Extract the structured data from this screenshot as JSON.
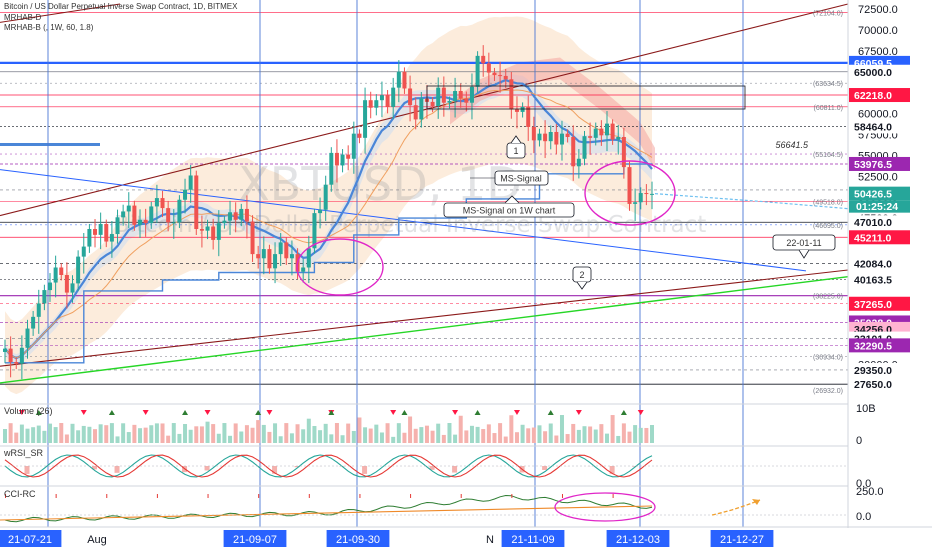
{
  "header": {
    "title": "Bitcoin / US Dollar Perpetual Inverse Swap Contract, 1D, BITMEX",
    "line2": "MRHAB-D",
    "line3": "MRHAB-B (, 1W, 60, 1.8)"
  },
  "watermark": {
    "symbol": "XBTUSD, 1D",
    "subtitle": "Bitcoin / US Dollar Perpetual Inverse Swap Contract"
  },
  "annotations": {
    "ms_signal": "MS-Signal",
    "ms_signal_1w": "MS-Signal on 1W chart",
    "marker1": "1",
    "marker2": "2",
    "date_callout": "22-01-11",
    "level_56641": "56641.5"
  },
  "panes": {
    "volume": "Volume (26)",
    "volume_scale": "10B",
    "volume_zero": "0",
    "wrsi": "wRSI_SR",
    "wrsi_scale": "0.0",
    "cci": "CCI-RC",
    "cci_top": "250.0",
    "cci_zero": "0.0"
  },
  "countdown": "01:25:24",
  "colors": {
    "price_up": "#26a69a",
    "price_down": "#ef5350",
    "trend_brown": "#8b1a1a",
    "trend_green": "#26d626",
    "ma_blue": "#4a86d8",
    "magenta": "#e026c8",
    "vline": "#4a76d4"
  },
  "chart_data": {
    "type": "candlestick",
    "title": "Bitcoin / US Dollar Perpetual Inverse Swap Contract, 1D, BITMEX",
    "price_range": [
      25400,
      73100
    ],
    "y_ticks": [
      {
        "label": "72500.0"
      },
      {
        "label": "70000.0"
      },
      {
        "label": "67500.0"
      },
      {
        "label": "65000.0"
      },
      {
        "label": "62500.0"
      },
      {
        "label": "60000.0"
      },
      {
        "label": "57500.0"
      },
      {
        "label": "55000.0"
      },
      {
        "label": "52500.0"
      },
      {
        "label": "50000.0"
      },
      {
        "label": "47500.0"
      },
      {
        "label": "45000.0"
      },
      {
        "label": "42500.0"
      },
      {
        "label": "40000.0"
      },
      {
        "label": "37500.0"
      },
      {
        "label": "35000.0"
      },
      {
        "label": "32500.0"
      },
      {
        "label": "30000.0"
      },
      {
        "label": "27500.0"
      }
    ],
    "price_badges": [
      {
        "label": "66059.5",
        "value": 66059.5,
        "bg": "#2962ff",
        "fg": "#ffffff"
      },
      {
        "label": "65000.0",
        "value": 65000,
        "bg": "#ffffff",
        "fg": "#131722"
      },
      {
        "label": "62218.0",
        "value": 62218,
        "bg": "#ff1744",
        "fg": "#ffffff"
      },
      {
        "label": "58464.0",
        "value": 58464,
        "bg": "#ffffff",
        "fg": "#131722"
      },
      {
        "label": "53976.5",
        "value": 53976.5,
        "bg": "#9c27b0",
        "fg": "#ffffff"
      },
      {
        "label": "50876.0",
        "value": 50876,
        "bg": "#ffffff",
        "fg": "#131722"
      },
      {
        "label": "50426.5",
        "value": 50426.5,
        "bg": "#26a69a",
        "fg": "#ffffff"
      },
      {
        "label": "47010.0",
        "value": 47010,
        "bg": "#ffffff",
        "fg": "#131722"
      },
      {
        "label": "45211.0",
        "value": 45211,
        "bg": "#ff1744",
        "fg": "#ffffff"
      },
      {
        "label": "42084.0",
        "value": 42084,
        "bg": "#ffffff",
        "fg": "#131722"
      },
      {
        "label": "40163.5",
        "value": 40163.5,
        "bg": "#ffffff",
        "fg": "#131722"
      },
      {
        "label": "37265.0",
        "value": 37265,
        "bg": "#ff1744",
        "fg": "#ffffff"
      },
      {
        "label": "35028.0",
        "value": 35028,
        "bg": "#9c27b0",
        "fg": "#ffffff"
      },
      {
        "label": "34256.0",
        "value": 34256,
        "bg": "#ffb3d1",
        "fg": "#131722"
      },
      {
        "label": "33101.0",
        "value": 33101,
        "bg": "#ffffff",
        "fg": "#131722"
      },
      {
        "label": "32290.5",
        "value": 32290.5,
        "bg": "#9c27b0",
        "fg": "#ffffff"
      },
      {
        "label": "29350.0",
        "value": 29350,
        "bg": "#ffffff",
        "fg": "#131722"
      },
      {
        "label": "27650.0",
        "value": 27650,
        "bg": "#ffffff",
        "fg": "#131722"
      }
    ],
    "small_level_labels": [
      {
        "label": "(72104.0)",
        "value": 72104
      },
      {
        "label": "(63634.5)",
        "value": 63634.5
      },
      {
        "label": "(60811.0)",
        "value": 60811
      },
      {
        "label": "(55164.5)",
        "value": 55164.5
      },
      {
        "label": "(49518.0)",
        "value": 49518
      },
      {
        "label": "(46695.0)",
        "value": 46695
      },
      {
        "label": "(38225.0)",
        "value": 38225
      },
      {
        "label": "(30934.0)",
        "value": 30934
      },
      {
        "label": "(26932.0)",
        "value": 26932
      }
    ],
    "x_labels": [
      {
        "label": "21-07-21",
        "highlight": true
      },
      {
        "label": "Aug",
        "highlight": false
      },
      {
        "label": "21-09-07",
        "highlight": true
      },
      {
        "label": "21-09-30",
        "highlight": true
      },
      {
        "label": "N",
        "highlight": false
      },
      {
        "label": "21-11-09",
        "highlight": true
      },
      {
        "label": "21-12-03",
        "highlight": true
      },
      {
        "label": "21-12-27",
        "highlight": true
      }
    ],
    "closes": [
      31900,
      30300,
      30100,
      32000,
      34300,
      35700,
      37300,
      38900,
      39800,
      41600,
      40700,
      38600,
      39700,
      42900,
      44100,
      46200,
      45500,
      46800,
      44700,
      45600,
      47600,
      48300,
      49000,
      46700,
      47300,
      46900,
      48900,
      49900,
      48700,
      47000,
      47000,
      49700,
      50900,
      52600,
      46200,
      46000,
      46500,
      44900,
      46900,
      47200,
      48200,
      47300,
      48600,
      47100,
      43200,
      42700,
      43800,
      41500,
      43200,
      44600,
      42700,
      43200,
      41100,
      41600,
      43900,
      48100,
      48500,
      51500,
      55300,
      53800,
      55100,
      54600,
      57600,
      57100,
      61600,
      60700,
      61600,
      62200,
      60800,
      63100,
      65000,
      63000,
      61000,
      59300,
      61800,
      61400,
      60900,
      63100,
      61300,
      61500,
      62700,
      61800,
      61300,
      63200,
      66900,
      66000,
      64900,
      64600,
      64500,
      64100,
      60500,
      60200,
      60800,
      58400,
      56800,
      57600,
      56700,
      57800,
      56300,
      57600,
      57200,
      53700,
      54600,
      57300,
      57100,
      58200,
      57400,
      58800,
      56900,
      57200,
      53600,
      49200,
      49400,
      50500,
      50400,
      50400
    ],
    "annotation_levels": [
      {
        "label": "56641.5",
        "value": 56641.5
      }
    ]
  }
}
